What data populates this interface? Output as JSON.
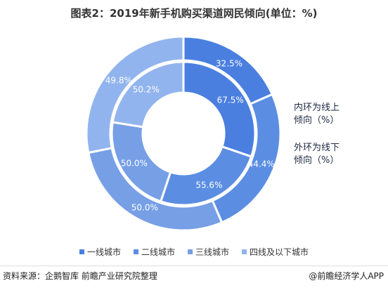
{
  "title": "图表2：2019年新手机购买渠道网民倾向(单位：%)",
  "chart_data": {
    "type": "pie",
    "variant": "double-donut",
    "categories": [
      "一线城市",
      "二线城市",
      "三线城市",
      "四线及以下城市"
    ],
    "series": [
      {
        "name": "内环为线上倾向（%）",
        "ring": "inner",
        "values": [
          67.5,
          55.6,
          50.0,
          50.2
        ],
        "labels": [
          "67.5%",
          "55.6%",
          "50.0%",
          "50.2%"
        ]
      },
      {
        "name": "外环为线下倾向（%）",
        "ring": "outer",
        "values": [
          32.5,
          44.4,
          50.0,
          49.8
        ],
        "labels": [
          "32.5%",
          "44.4%",
          "50.0%",
          "49.8%"
        ]
      }
    ],
    "colors": [
      "#4a7fe0",
      "#5b8ee3",
      "#769fe6",
      "#92b4ee"
    ],
    "legend_position": "bottom"
  },
  "ring_labels": {
    "inner_line1": "内环为线上",
    "inner_line2": "倾向（%）",
    "outer_line1": "外环为线下",
    "outer_line2": "倾向（%）"
  },
  "footer": {
    "source": "资料来源：企鹅智库 前瞻产业研究院整理",
    "brand": "@前瞻经济学人APP"
  }
}
